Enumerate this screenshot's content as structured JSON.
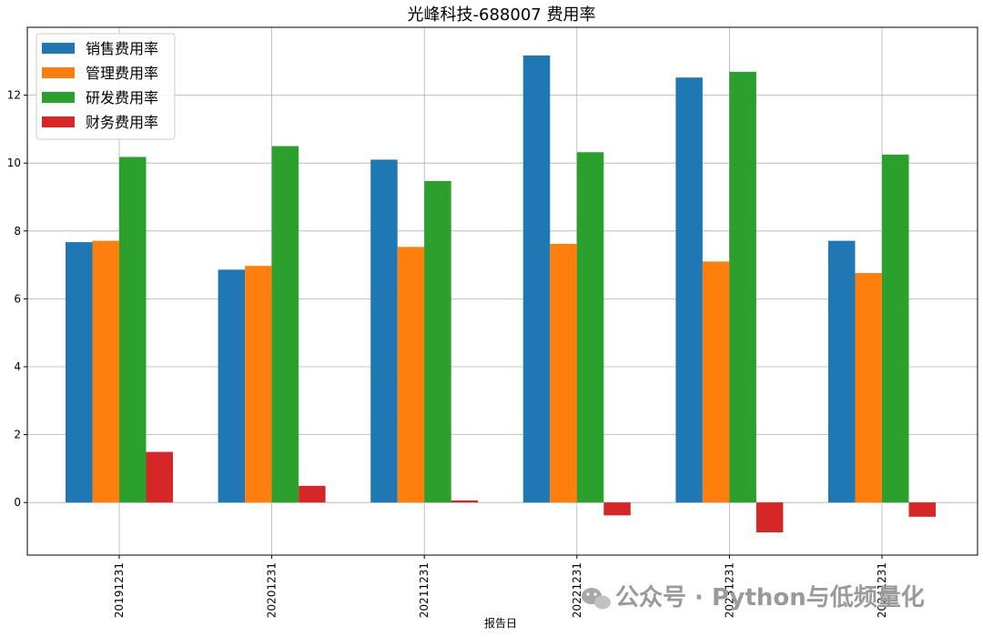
{
  "chart_data": {
    "type": "bar",
    "title": "光峰科技-688007 费用率",
    "xlabel": "报告日",
    "ylabel": "",
    "categories": [
      "20191231",
      "20201231",
      "20211231",
      "20221231",
      "20231231",
      "20241231"
    ],
    "series": [
      {
        "name": "销售费用率",
        "color": "#1f77b4",
        "values": [
          7.67,
          6.86,
          10.1,
          13.17,
          12.52,
          7.71
        ]
      },
      {
        "name": "管理费用率",
        "color": "#ff7f0e",
        "values": [
          7.71,
          6.97,
          7.53,
          7.62,
          7.1,
          6.76
        ]
      },
      {
        "name": "研发费用率",
        "color": "#2ca02c",
        "values": [
          10.18,
          10.5,
          9.47,
          10.32,
          12.69,
          10.25
        ]
      },
      {
        "name": "财务费用率",
        "color": "#d62728",
        "values": [
          1.49,
          0.49,
          0.06,
          -0.38,
          -0.88,
          -0.42
        ]
      }
    ],
    "yticks": [
      "0",
      "2",
      "4",
      "6",
      "8",
      "10",
      "12"
    ],
    "ylim": [
      -1.55,
      14.0
    ],
    "grid": true,
    "legend": "top-left"
  },
  "watermark": {
    "text": "公众号 · Python与低频量化",
    "icon": "wechat-icon"
  }
}
